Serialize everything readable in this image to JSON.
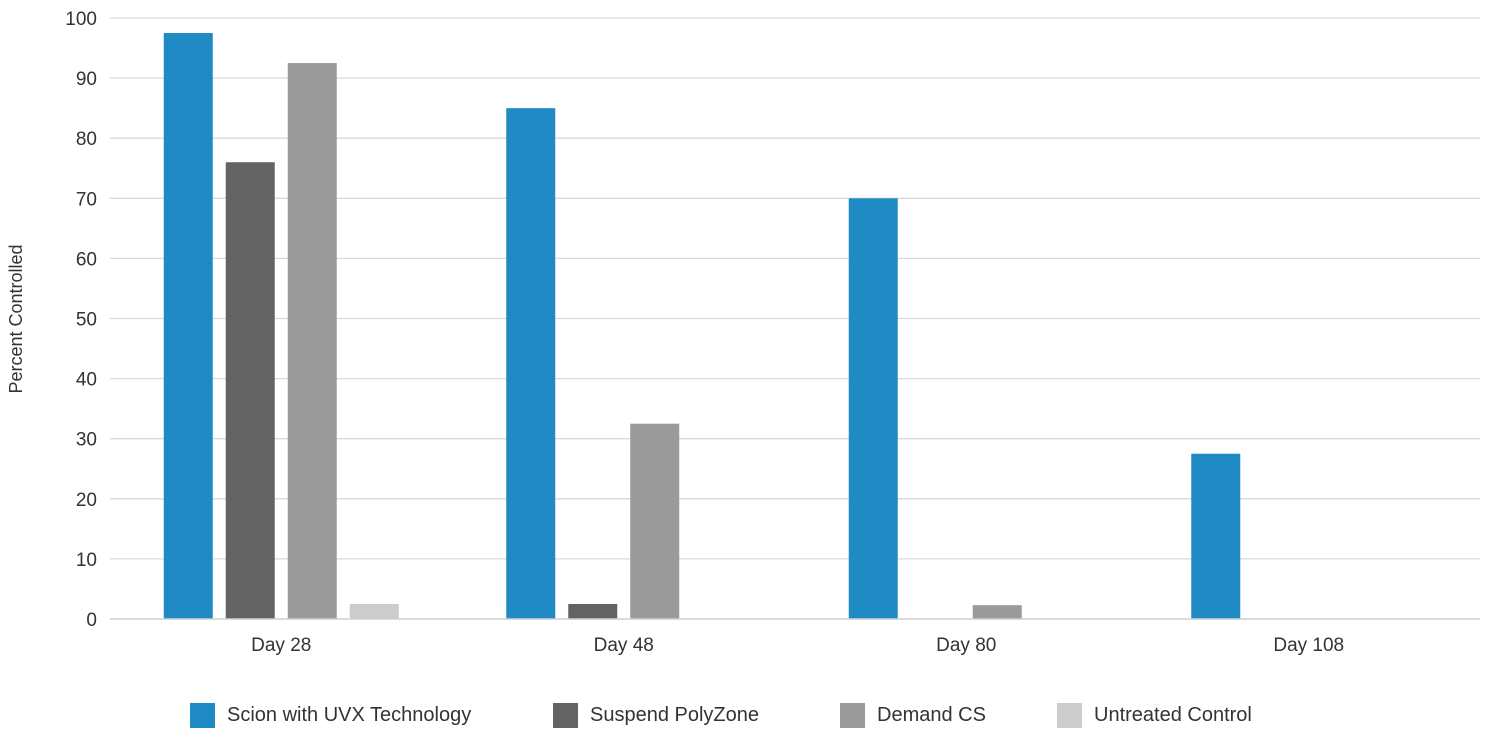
{
  "chart_data": {
    "type": "bar",
    "title": "",
    "xlabel": "",
    "ylabel": "Percent Controlled",
    "ylim": [
      0,
      100
    ],
    "yticks": [
      0,
      10,
      20,
      30,
      40,
      50,
      60,
      70,
      80,
      90,
      100
    ],
    "grid": true,
    "legend_position": "bottom",
    "categories": [
      "Day 28",
      "Day 48",
      "Day 80",
      "Day 108"
    ],
    "series": [
      {
        "name": "Scion with UVX Technology",
        "color": "#1f8ac4",
        "values": [
          97.5,
          85,
          70,
          27.5
        ]
      },
      {
        "name": "Suspend PolyZone",
        "color": "#636363",
        "values": [
          76,
          2.5,
          0,
          0
        ]
      },
      {
        "name": "Demand CS",
        "color": "#9a9a9a",
        "values": [
          92.5,
          32.5,
          2.3,
          0
        ]
      },
      {
        "name": "Untreated Control",
        "color": "#cccccc",
        "values": [
          2.5,
          0,
          0,
          0
        ]
      }
    ]
  }
}
